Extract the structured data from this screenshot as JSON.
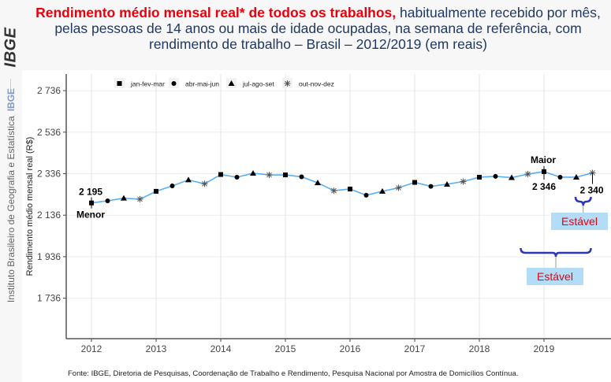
{
  "sidebar": {
    "logo_text": "IBGE",
    "institution": "Instituto Brasileiro de Geografia e Estatística",
    "institution_short": "IBGE"
  },
  "title": {
    "highlight": "Rendimento médio mensal real* de todos os trabalhos,",
    "rest": " habitualmente recebido por mês, pelas pessoas de 14 anos ou mais de idade ocupadas, na semana de referência, com rendimento de trabalho – Brasil – 2012/2019 (em reais)"
  },
  "source": "Fonte: IBGE, Diretoria de Pesquisas, Coordenação de Trabalho e Rendimento, Pesquisa Nacional por Amostra de Domicílios Contínua.",
  "colors": {
    "title_highlight": "#e8000d",
    "title_text": "#1f3864",
    "line": "#5aaef0",
    "brace": "#2e36b8",
    "stable_box": "#b3dcf7",
    "stable_text": "#e8000d"
  },
  "chart_data": {
    "type": "line",
    "title": "Rendimento médio mensal real de todos os trabalhos – Brasil – 2012/2019 (em reais)",
    "xlabel": "",
    "ylabel": "Rendimento médio mensal real (R$)",
    "ylim": [
      1600,
      2800
    ],
    "yticks": [
      1736,
      1936,
      2136,
      2336,
      2536,
      2736
    ],
    "ytick_labels": [
      "1 736",
      "1 936",
      "2 136",
      "2 336",
      "2 536",
      "2 736"
    ],
    "xticks": [
      "2012",
      "2013",
      "2014",
      "2015",
      "2016",
      "2017",
      "2018",
      "2019"
    ],
    "grid": true,
    "legend_position": "top-left",
    "legend": [
      {
        "label": "jan-fev-mar",
        "marker": "square"
      },
      {
        "label": "abr-mai-jun",
        "marker": "circle"
      },
      {
        "label": "jul-ago-set",
        "marker": "triangle"
      },
      {
        "label": "out-nov-dez",
        "marker": "asterisk"
      }
    ],
    "series": [
      {
        "name": "Rendimento médio",
        "quarters": [
          "2012T1",
          "2012T2",
          "2012T3",
          "2012T4",
          "2013T1",
          "2013T2",
          "2013T3",
          "2013T4",
          "2014T1",
          "2014T2",
          "2014T3",
          "2014T4",
          "2015T1",
          "2015T2",
          "2015T3",
          "2015T4",
          "2016T1",
          "2016T2",
          "2016T3",
          "2016T4",
          "2017T1",
          "2017T2",
          "2017T3",
          "2017T4",
          "2018T1",
          "2018T2",
          "2018T3",
          "2018T4",
          "2019T1",
          "2019T2",
          "2019T3",
          "2019T4"
        ],
        "values": [
          2195,
          2205,
          2218,
          2213,
          2251,
          2277,
          2306,
          2287,
          2332,
          2319,
          2338,
          2330,
          2330,
          2321,
          2292,
          2254,
          2262,
          2232,
          2251,
          2268,
          2294,
          2275,
          2285,
          2298,
          2319,
          2323,
          2317,
          2334,
          2346,
          2319,
          2319,
          2340
        ]
      }
    ],
    "annotations": [
      {
        "index": 0,
        "value_label": "2 195",
        "tag": "Menor"
      },
      {
        "index": 28,
        "value_label": "2 346",
        "tag": "Maior"
      },
      {
        "index": 31,
        "value_label": "2 340",
        "tag": ""
      }
    ],
    "stable_callouts": [
      {
        "label": "Estável",
        "from_index": 30,
        "to_index": 31
      },
      {
        "label": "Estável",
        "from_index": 27,
        "to_index": 31
      }
    ]
  }
}
